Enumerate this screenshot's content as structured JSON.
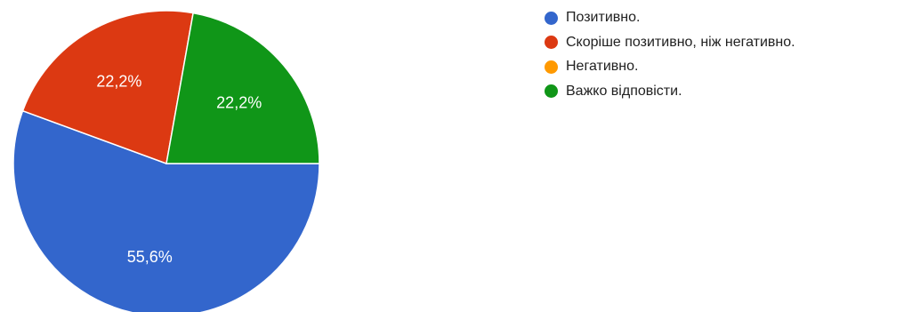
{
  "chart_data": {
    "type": "pie",
    "categories": [
      "Позитивно.",
      "Скоріше позитивно, ніж негативно.",
      "Негативно.",
      "Важко відповісти."
    ],
    "values": [
      55.6,
      22.2,
      0,
      22.2
    ],
    "value_labels": [
      "55,6%",
      "22,2%",
      "",
      "22,2%"
    ],
    "colors": [
      "#3366cc",
      "#dc3912",
      "#ff9900",
      "#109618"
    ],
    "legend_position": "right"
  }
}
